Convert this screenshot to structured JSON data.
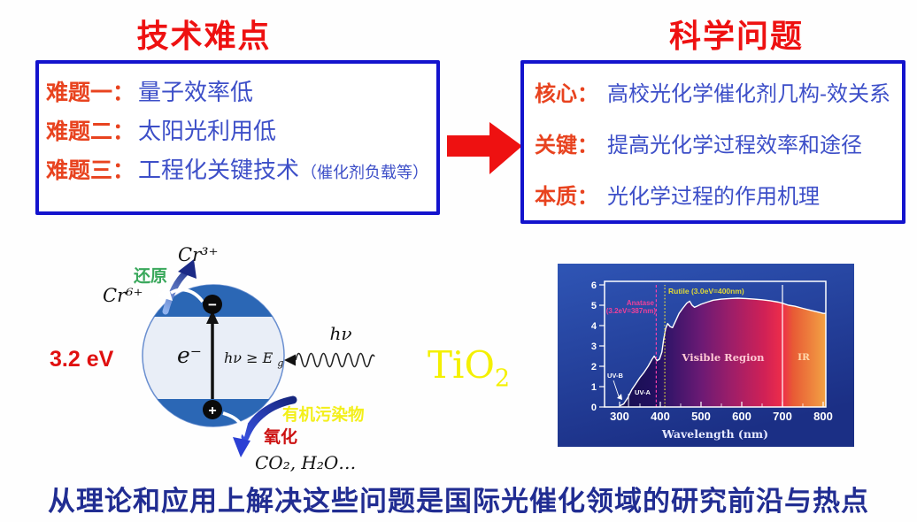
{
  "slide": {
    "left_title": "技术难点",
    "right_title": "科学问题",
    "bottom_caption": "从理论和应用上解决这些问题是国际光催化领域的研究前沿与热点"
  },
  "left_box": {
    "items": [
      {
        "label": "难题一：",
        "text": "量子效率低",
        "note": ""
      },
      {
        "label": "难题二：",
        "text": "太阳光利用低",
        "note": ""
      },
      {
        "label": "难题三：",
        "text": "工程化关键技术",
        "note": "（催化剂负载等）"
      }
    ]
  },
  "right_box": {
    "items": [
      {
        "label": "核心：",
        "text": "高校光化学催化剂几构-效关系"
      },
      {
        "label": "关键：",
        "text": "提高光化学过程效率和途径"
      },
      {
        "label": "本质：",
        "text": "光化学过程的作用机理"
      }
    ]
  },
  "diagram": {
    "band_gap": "3.2 eV",
    "cr6": "Cr⁶⁺",
    "cr3": "Cr³⁺",
    "reduction": "还原",
    "oxidation": "氧化",
    "electron": "e⁻",
    "electron_symbol": "−",
    "hole_symbol": "+",
    "transition_main": "hν ≥ E",
    "transition_sub": "g",
    "photon": "hν",
    "pollutant": "有机污染物",
    "products": "CO₂, H₂O…",
    "compound_main": "TiO",
    "compound_sub": "2"
  },
  "chart_data": {
    "type": "area",
    "title": "Solar spectrum with TiO2 absorption edges",
    "xlabel": "Wavelength (nm)",
    "ylabel": "",
    "xlim": [
      263,
      805
    ],
    "ylim": [
      0,
      6
    ],
    "xticks": [
      300,
      400,
      500,
      600,
      700,
      800
    ],
    "yticks": [
      0,
      1,
      2,
      3,
      4,
      5,
      6
    ],
    "x": [
      300,
      310,
      320,
      330,
      340,
      350,
      360,
      370,
      380,
      385,
      392,
      398,
      404,
      408,
      413,
      418,
      424,
      430,
      438,
      446,
      455,
      465,
      472,
      478,
      484,
      490,
      500,
      515,
      530,
      550,
      570,
      590,
      610,
      630,
      650,
      670,
      690,
      700,
      715,
      730,
      750,
      770,
      785,
      800
    ],
    "values": [
      0.05,
      0.15,
      0.45,
      0.85,
      1.15,
      1.45,
      1.7,
      2.0,
      2.35,
      2.5,
      2.28,
      2.35,
      2.7,
      3.3,
      3.85,
      4.1,
      3.95,
      3.9,
      4.25,
      4.6,
      4.85,
      5.1,
      5.2,
      5.0,
      4.9,
      4.95,
      5.05,
      5.15,
      5.25,
      5.3,
      5.33,
      5.35,
      5.33,
      5.3,
      5.27,
      5.22,
      5.15,
      5.1,
      5.0,
      4.95,
      4.85,
      4.75,
      4.68,
      4.6
    ],
    "labels": {
      "anatase_line1": "Anatase",
      "anatase_line2": "(3.2eV=387nm)",
      "rutile": "Rutile (3.0eV=400nm)",
      "visible": "Visible Region",
      "ir": "IR",
      "uvb": "UV-B",
      "uva": "UV-A"
    },
    "markers": [
      {
        "name": "uvb-uva-boundary-line",
        "nm": 322,
        "color": "#ffffff",
        "dash": "",
        "full": false
      },
      {
        "name": "anatase-edge-line",
        "nm": 390,
        "color": "#ff41aa",
        "dash": "3 2.4",
        "full": true
      },
      {
        "name": "rutile-edge-line",
        "nm": 411,
        "color": "#e8e13c",
        "dash": "1.6 2.2",
        "full": true
      },
      {
        "name": "visible-ir-boundary-line",
        "nm": 700,
        "color": "#ffffff",
        "dash": "",
        "full": true
      }
    ],
    "legend_position": "none",
    "grid": false
  },
  "colors": {
    "title_red": "#ee1111",
    "box_border_blue": "#1313cd",
    "label_orange_red": "#e8431f",
    "body_blue": "#3d4fc8",
    "caption_navy": "#212d92",
    "arrow_red": "#ee1111",
    "band_blue": "#2b67b5",
    "tio2_yellow": "#f4f000",
    "reduction_green": "#3aa85c",
    "oxidation_red": "#cc1111",
    "chart_bg_blue": "#24469f"
  }
}
